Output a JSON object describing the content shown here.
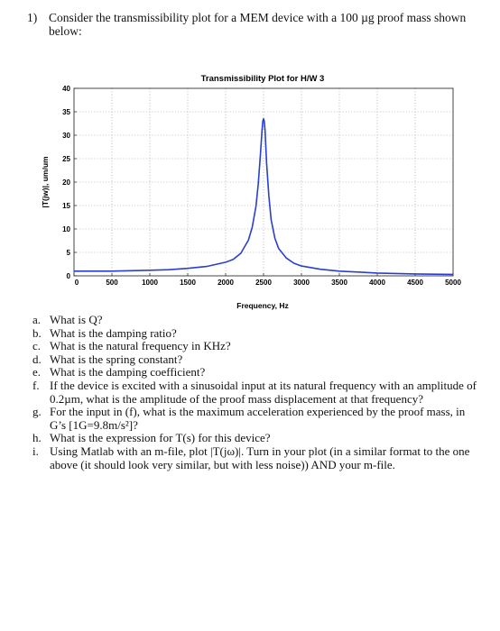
{
  "header": {
    "number": "1)",
    "statement": "Consider the transmissibility plot for a MEM device with a 100 µg proof mass shown below:"
  },
  "chart_data": {
    "type": "line",
    "title": "Transmissibility Plot for H/W 3",
    "xlabel": "Frequency, Hz",
    "ylabel": "|T(jw)|, um/um",
    "xlim": [
      0,
      5000
    ],
    "ylim": [
      0,
      40
    ],
    "xticks": [
      "0",
      "500",
      "1000",
      "1500",
      "2000",
      "2500",
      "3000",
      "3500",
      "4000",
      "4500",
      "5000"
    ],
    "yticks": [
      "0",
      "5",
      "10",
      "15",
      "20",
      "25",
      "30",
      "35",
      "40"
    ],
    "grid": true,
    "line_color": "#2a3fd0",
    "series": [
      {
        "x": [
          0,
          250,
          500,
          750,
          1000,
          1250,
          1500,
          1750,
          2000,
          2100,
          2200,
          2300,
          2350,
          2400,
          2430,
          2460,
          2480,
          2490,
          2500,
          2510,
          2520,
          2540,
          2570,
          2600,
          2650,
          2700,
          2800,
          2900,
          3000,
          3250,
          3500,
          3750,
          4000,
          4250,
          4500,
          4750,
          5000
        ],
        "values": [
          1.0,
          1.0,
          1.0,
          1.1,
          1.2,
          1.3,
          1.6,
          2.0,
          2.9,
          3.5,
          4.8,
          7.6,
          10.3,
          14.8,
          19.5,
          26.0,
          31.0,
          33.0,
          33.5,
          33.0,
          31.0,
          24.0,
          17.0,
          12.0,
          8.0,
          5.8,
          3.8,
          2.7,
          2.1,
          1.4,
          1.0,
          0.8,
          0.6,
          0.5,
          0.4,
          0.35,
          0.3
        ]
      }
    ]
  },
  "questions": [
    {
      "letter": "a.",
      "text": "What is Q?"
    },
    {
      "letter": "b.",
      "text": "What is the damping ratio?"
    },
    {
      "letter": "c.",
      "text": "What is the natural frequency in KHz?"
    },
    {
      "letter": "d.",
      "text": "What is the spring constant?"
    },
    {
      "letter": "e.",
      "text": "What is the damping coefficient?"
    },
    {
      "letter": "f.",
      "text": "If the device is excited with a sinusoidal input at its natural frequency with an amplitude of 0.2µm, what is the amplitude of the proof mass displacement at that frequency?"
    },
    {
      "letter": "g.",
      "text": "For the input in (f), what is the maximum acceleration experienced by the proof mass, in G’s [1G=9.8m/s²]?"
    },
    {
      "letter": "h.",
      "text": "What is the expression for T(s) for this device?"
    },
    {
      "letter": "i.",
      "text": "Using Matlab with an m-file, plot |T(jω)|.  Turn in your plot (in a similar format to the one above (it should look very similar, but with less noise)) AND your m-file."
    }
  ]
}
